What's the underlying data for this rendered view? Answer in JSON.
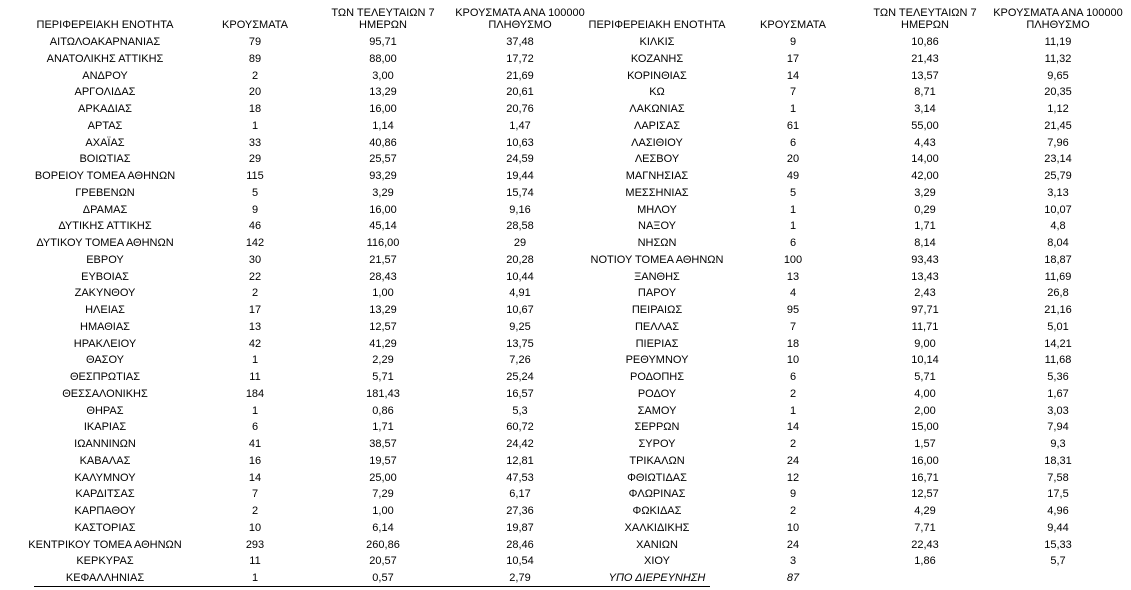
{
  "table": {
    "header": [
      "ΠΕΡΙΦΕΡΕΙΑΚΗ ΕΝΟΤΗΤΑ",
      "ΚΡΟΥΣΜΑΤΑ",
      "ΤΩΝ ΤΕΛΕΥΤΑΙΩΝ 7 ΗΜΕΡΩΝ",
      "ΚΡΟΥΣΜΑΤΑ ΑΝΑ 100000 ΠΛΗΘΥΣΜΟ",
      "ΠΕΡΙΦΕΡΕΙΑΚΗ ΕΝΟΤΗΤΑ",
      "ΚΡΟΥΣΜΑΤΑ",
      "ΤΩΝ ΤΕΛΕΥΤΑΙΩΝ 7 ΗΜΕΡΩΝ",
      "ΚΡΟΥΣΜΑΤΑ ΑΝΑ 100000 ΠΛΗΘΥΣΜΟ"
    ],
    "rows": [
      [
        "ΑΙΤΩΛΟΑΚΑΡΝΑΝΙΑΣ",
        "79",
        "95,71",
        "37,48",
        "ΚΙΛΚΙΣ",
        "9",
        "10,86",
        "11,19"
      ],
      [
        "ΑΝΑΤΟΛΙΚΗΣ ΑΤΤΙΚΗΣ",
        "89",
        "88,00",
        "17,72",
        "ΚΟΖΑΝΗΣ",
        "17",
        "21,43",
        "11,32"
      ],
      [
        "ΑΝΔΡΟΥ",
        "2",
        "3,00",
        "21,69",
        "ΚΟΡΙΝΘΙΑΣ",
        "14",
        "13,57",
        "9,65"
      ],
      [
        "ΑΡΓΟΛΙΔΑΣ",
        "20",
        "13,29",
        "20,61",
        "ΚΩ",
        "7",
        "8,71",
        "20,35"
      ],
      [
        "ΑΡΚΑΔΙΑΣ",
        "18",
        "16,00",
        "20,76",
        "ΛΑΚΩΝΙΑΣ",
        "1",
        "3,14",
        "1,12"
      ],
      [
        "ΑΡΤΑΣ",
        "1",
        "1,14",
        "1,47",
        "ΛΑΡΙΣΑΣ",
        "61",
        "55,00",
        "21,45"
      ],
      [
        "ΑΧΑΪΑΣ",
        "33",
        "40,86",
        "10,63",
        "ΛΑΣΙΘΙΟΥ",
        "6",
        "4,43",
        "7,96"
      ],
      [
        "ΒΟΙΩΤΙΑΣ",
        "29",
        "25,57",
        "24,59",
        "ΛΕΣΒΟΥ",
        "20",
        "14,00",
        "23,14"
      ],
      [
        "ΒΟΡΕΙΟΥ ΤΟΜΕΑ ΑΘΗΝΩΝ",
        "115",
        "93,29",
        "19,44",
        "ΜΑΓΝΗΣΙΑΣ",
        "49",
        "42,00",
        "25,79"
      ],
      [
        "ΓΡΕΒΕΝΩΝ",
        "5",
        "3,29",
        "15,74",
        "ΜΕΣΣΗΝΙΑΣ",
        "5",
        "3,29",
        "3,13"
      ],
      [
        "ΔΡΑΜΑΣ",
        "9",
        "16,00",
        "9,16",
        "ΜΗΛΟΥ",
        "1",
        "0,29",
        "10,07"
      ],
      [
        "ΔΥΤΙΚΗΣ ΑΤΤΙΚΗΣ",
        "46",
        "45,14",
        "28,58",
        "ΝΑΞΟΥ",
        "1",
        "1,71",
        "4,8"
      ],
      [
        "ΔΥΤΙΚΟΥ ΤΟΜΕΑ ΑΘΗΝΩΝ",
        "142",
        "116,00",
        "29",
        "ΝΗΣΩΝ",
        "6",
        "8,14",
        "8,04"
      ],
      [
        "ΕΒΡΟΥ",
        "30",
        "21,57",
        "20,28",
        "ΝΟΤΙΟΥ ΤΟΜΕΑ ΑΘΗΝΩΝ",
        "100",
        "93,43",
        "18,87"
      ],
      [
        "ΕΥΒΟΙΑΣ",
        "22",
        "28,43",
        "10,44",
        "ΞΑΝΘΗΣ",
        "13",
        "13,43",
        "11,69"
      ],
      [
        "ΖΑΚΥΝΘΟΥ",
        "2",
        "1,00",
        "4,91",
        "ΠΑΡΟΥ",
        "4",
        "2,43",
        "26,8"
      ],
      [
        "ΗΛΕΙΑΣ",
        "17",
        "13,29",
        "10,67",
        "ΠΕΙΡΑΙΩΣ",
        "95",
        "97,71",
        "21,16"
      ],
      [
        "ΗΜΑΘΙΑΣ",
        "13",
        "12,57",
        "9,25",
        "ΠΕΛΛΑΣ",
        "7",
        "11,71",
        "5,01"
      ],
      [
        "ΗΡΑΚΛΕΙΟΥ",
        "42",
        "41,29",
        "13,75",
        "ΠΙΕΡΙΑΣ",
        "18",
        "9,00",
        "14,21"
      ],
      [
        "ΘΑΣΟΥ",
        "1",
        "2,29",
        "7,26",
        "ΡΕΘΥΜΝΟΥ",
        "10",
        "10,14",
        "11,68"
      ],
      [
        "ΘΕΣΠΡΩΤΙΑΣ",
        "11",
        "5,71",
        "25,24",
        "ΡΟΔΟΠΗΣ",
        "6",
        "5,71",
        "5,36"
      ],
      [
        "ΘΕΣΣΑΛΟΝΙΚΗΣ",
        "184",
        "181,43",
        "16,57",
        "ΡΟΔΟΥ",
        "2",
        "4,00",
        "1,67"
      ],
      [
        "ΘΗΡΑΣ",
        "1",
        "0,86",
        "5,3",
        "ΣΑΜΟΥ",
        "1",
        "2,00",
        "3,03"
      ],
      [
        "ΙΚΑΡΙΑΣ",
        "6",
        "1,71",
        "60,72",
        "ΣΕΡΡΩΝ",
        "14",
        "15,00",
        "7,94"
      ],
      [
        "ΙΩΑΝΝΙΝΩΝ",
        "41",
        "38,57",
        "24,42",
        "ΣΥΡΟΥ",
        "2",
        "1,57",
        "9,3"
      ],
      [
        "ΚΑΒΑΛΑΣ",
        "16",
        "19,57",
        "12,81",
        "ΤΡΙΚΑΛΩΝ",
        "24",
        "16,00",
        "18,31"
      ],
      [
        "ΚΑΛΥΜΝΟΥ",
        "14",
        "25,00",
        "47,53",
        "ΦΘΙΩΤΙΔΑΣ",
        "12",
        "16,71",
        "7,58"
      ],
      [
        "ΚΑΡΔΙΤΣΑΣ",
        "7",
        "7,29",
        "6,17",
        "ΦΛΩΡΙΝΑΣ",
        "9",
        "12,57",
        "17,5"
      ],
      [
        "ΚΑΡΠΑΘΟΥ",
        "2",
        "1,00",
        "27,36",
        "ΦΩΚΙΔΑΣ",
        "2",
        "4,29",
        "4,96"
      ],
      [
        "ΚΑΣΤΟΡΙΑΣ",
        "10",
        "6,14",
        "19,87",
        "ΧΑΛΚΙΔΙΚΗΣ",
        "10",
        "7,71",
        "9,44"
      ],
      [
        "ΚΕΝΤΡΙΚΟΥ ΤΟΜΕΑ ΑΘΗΝΩΝ",
        "293",
        "260,86",
        "28,46",
        "ΧΑΝΙΩΝ",
        "24",
        "22,43",
        "15,33"
      ],
      [
        "ΚΕΡΚΥΡΑΣ",
        "11",
        "20,57",
        "10,54",
        "ΧΙΟΥ",
        "3",
        "1,86",
        "5,7"
      ],
      [
        "ΚΕΦΑΛΛΗΝΙΑΣ",
        "1",
        "0,57",
        "2,79",
        "ΥΠΟ ΔΙΕΡΕΥΝΗΣΗ",
        "87"
      ]
    ]
  }
}
